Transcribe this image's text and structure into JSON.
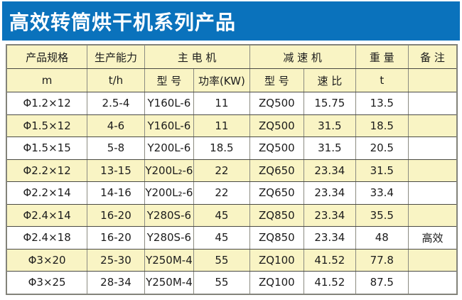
{
  "banner": {
    "title": "高效转筒烘干机系列产品",
    "bg_color": "#0a72bc",
    "text_color": "#ffffff"
  },
  "table": {
    "colors": {
      "header_bg": "#f9f4c4",
      "row_alt_bg": "#f9f4c4",
      "row_bg": "#ffffff",
      "border": "#4a4a44"
    },
    "header_row1": {
      "spec": "产品规格",
      "capacity": "生产能力",
      "main_motor": "主  电  机",
      "reducer": "减  速  机",
      "weight": "重 量",
      "remark": "备 注"
    },
    "header_row2": {
      "spec_unit": "m",
      "capacity_unit": "t/h",
      "motor_model": "型 号",
      "motor_power": "功率(KW)",
      "reducer_model": "型 号",
      "reducer_ratio": "速 比",
      "weight_unit": "t",
      "remark_unit": ""
    },
    "rows": [
      [
        "Φ1.2×12",
        "2.5-4",
        "Y160L-6",
        "11",
        "ZQ500",
        "15.75",
        "13.5",
        ""
      ],
      [
        "Φ1.5×12",
        "4-6",
        "Y160L-6",
        "11",
        "ZQ500",
        "31.5",
        "18.5",
        ""
      ],
      [
        "Φ1.5×15",
        "5-8",
        "Y200L-6",
        "18.5",
        "ZQ500",
        "31.5",
        "20.5",
        ""
      ],
      [
        "Φ2.2×12",
        "13-15",
        "Y200L₂-6",
        "22",
        "ZQ650",
        "23.34",
        "31.5",
        ""
      ],
      [
        "Φ2.2×14",
        "14-16",
        "Y200L₂-6",
        "22",
        "ZQ650",
        "23.34",
        "33.4",
        ""
      ],
      [
        "Φ2.4×14",
        "16-20",
        "Y280S-6",
        "45",
        "ZQ850",
        "23.34",
        "35.5",
        ""
      ],
      [
        "Φ2.4×18",
        "16-20",
        "Y280S-6",
        "45",
        "ZQ850",
        "23.34",
        "48",
        "高效"
      ],
      [
        "Φ3×20",
        "25-30",
        "Y250M-4",
        "55",
        "ZQ100",
        "41.52",
        "77.8",
        ""
      ],
      [
        "Φ3×25",
        "28-34",
        "Y250M-4",
        "55",
        "ZQ100",
        "41.52",
        "87.5",
        ""
      ]
    ]
  }
}
